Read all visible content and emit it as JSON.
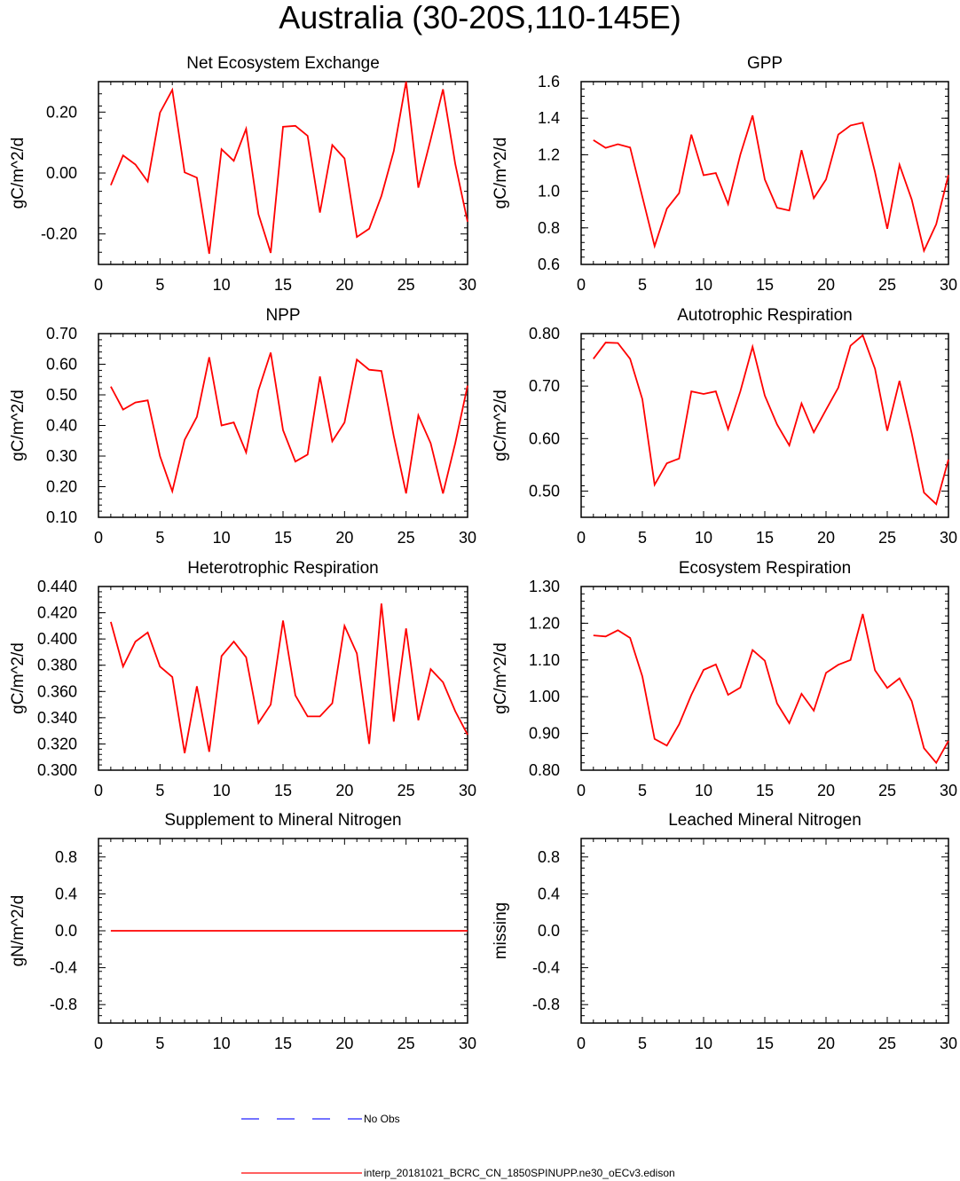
{
  "figure": {
    "title": "Australia (30-20S,110-145E)",
    "legend": [
      {
        "label": "No Obs",
        "color": "#2020ff",
        "style": "dashed"
      },
      {
        "label": "interp_20181021_BCRC_CN_1850SPINUPP.ne30_oECv3.edison",
        "color": "#ff0000",
        "style": "solid"
      }
    ]
  },
  "chart_data": [
    {
      "type": "line",
      "title": "Net Ecosystem Exchange",
      "ylabel": "gC/m^2/d",
      "xlabel": "",
      "xlim": [
        0,
        30
      ],
      "ylim": [
        -0.3,
        0.3
      ],
      "xticks": [
        0,
        5,
        10,
        15,
        20,
        25,
        30
      ],
      "yticks": [
        -0.2,
        0.0,
        0.2
      ],
      "ytick_labels": [
        "-0.20",
        "0.00",
        "0.20"
      ],
      "grid": false,
      "series": [
        {
          "name": "interp_20181021_BCRC_CN_1850SPINUPP.ne30_oECv3.edison",
          "color": "#ff0000",
          "x": [
            1,
            2,
            3,
            4,
            5,
            6,
            7,
            8,
            9,
            10,
            11,
            12,
            13,
            14,
            15,
            16,
            17,
            18,
            19,
            20,
            21,
            22,
            23,
            24,
            25,
            26,
            27,
            28,
            29,
            30
          ],
          "values": [
            -0.04,
            0.058,
            0.028,
            -0.028,
            0.198,
            0.273,
            0.002,
            -0.015,
            -0.265,
            0.078,
            0.04,
            0.145,
            -0.135,
            -0.262,
            0.152,
            0.155,
            0.122,
            -0.13,
            0.092,
            0.048,
            -0.21,
            -0.183,
            -0.075,
            0.072,
            0.3,
            -0.048,
            0.11,
            0.275,
            0.03,
            -0.16
          ]
        }
      ]
    },
    {
      "type": "line",
      "title": "GPP",
      "ylabel": "gC/m^2/d",
      "xlabel": "",
      "xlim": [
        0,
        30
      ],
      "ylim": [
        0.6,
        1.6
      ],
      "xticks": [
        0,
        5,
        10,
        15,
        20,
        25,
        30
      ],
      "yticks": [
        0.6,
        0.8,
        1.0,
        1.2,
        1.4,
        1.6
      ],
      "ytick_labels": [
        "0.6",
        "0.8",
        "1.0",
        "1.2",
        "1.4",
        "1.6"
      ],
      "grid": false,
      "series": [
        {
          "name": "interp_20181021_BCRC_CN_1850SPINUPP.ne30_oECv3.edison",
          "color": "#ff0000",
          "x": [
            1,
            2,
            3,
            4,
            5,
            6,
            7,
            8,
            9,
            10,
            11,
            12,
            13,
            14,
            15,
            16,
            17,
            18,
            19,
            20,
            21,
            22,
            23,
            24,
            25,
            26,
            27,
            28,
            29,
            30
          ],
          "values": [
            1.28,
            1.238,
            1.258,
            1.24,
            0.97,
            0.7,
            0.905,
            0.99,
            1.31,
            1.088,
            1.1,
            0.93,
            1.2,
            1.415,
            1.065,
            0.91,
            0.895,
            1.225,
            0.962,
            1.065,
            1.31,
            1.36,
            1.375,
            1.105,
            0.795,
            1.145,
            0.955,
            0.675,
            0.82,
            1.09
          ]
        }
      ]
    },
    {
      "type": "line",
      "title": "NPP",
      "ylabel": "gC/m^2/d",
      "xlabel": "",
      "xlim": [
        0,
        30
      ],
      "ylim": [
        0.1,
        0.7
      ],
      "xticks": [
        0,
        5,
        10,
        15,
        20,
        25,
        30
      ],
      "yticks": [
        0.1,
        0.2,
        0.3,
        0.4,
        0.5,
        0.6,
        0.7
      ],
      "ytick_labels": [
        "0.10",
        "0.20",
        "0.30",
        "0.40",
        "0.50",
        "0.60",
        "0.70"
      ],
      "grid": false,
      "series": [
        {
          "name": "interp_20181021_BCRC_CN_1850SPINUPP.ne30_oECv3.edison",
          "color": "#ff0000",
          "x": [
            1,
            2,
            3,
            4,
            5,
            6,
            7,
            8,
            9,
            10,
            11,
            12,
            13,
            14,
            15,
            16,
            17,
            18,
            19,
            20,
            21,
            22,
            23,
            24,
            25,
            26,
            27,
            28,
            29,
            30
          ],
          "values": [
            0.527,
            0.452,
            0.475,
            0.482,
            0.3,
            0.185,
            0.353,
            0.428,
            0.623,
            0.4,
            0.41,
            0.312,
            0.515,
            0.638,
            0.385,
            0.282,
            0.305,
            0.56,
            0.348,
            0.41,
            0.615,
            0.582,
            0.578,
            0.365,
            0.178,
            0.433,
            0.342,
            0.178,
            0.342,
            0.53
          ]
        }
      ]
    },
    {
      "type": "line",
      "title": "Autotrophic Respiration",
      "ylabel": "gC/m^2/d",
      "xlabel": "",
      "xlim": [
        0,
        30
      ],
      "ylim": [
        0.45,
        0.8
      ],
      "xticks": [
        0,
        5,
        10,
        15,
        20,
        25,
        30
      ],
      "yticks": [
        0.5,
        0.6,
        0.7,
        0.8
      ],
      "ytick_labels": [
        "0.50",
        "0.60",
        "0.70",
        "0.80"
      ],
      "grid": false,
      "series": [
        {
          "name": "interp_20181021_BCRC_CN_1850SPINUPP.ne30_oECv3.edison",
          "color": "#ff0000",
          "x": [
            1,
            2,
            3,
            4,
            5,
            6,
            7,
            8,
            9,
            10,
            11,
            12,
            13,
            14,
            15,
            16,
            17,
            18,
            19,
            20,
            21,
            22,
            23,
            24,
            25,
            26,
            27,
            28,
            29,
            30
          ],
          "values": [
            0.752,
            0.783,
            0.782,
            0.752,
            0.675,
            0.512,
            0.553,
            0.562,
            0.69,
            0.685,
            0.69,
            0.618,
            0.69,
            0.775,
            0.682,
            0.627,
            0.587,
            0.667,
            0.612,
            0.655,
            0.697,
            0.777,
            0.797,
            0.733,
            0.615,
            0.71,
            0.61,
            0.497,
            0.475,
            0.56
          ]
        }
      ]
    },
    {
      "type": "line",
      "title": "Heterotrophic Respiration",
      "ylabel": "gC/m^2/d",
      "xlabel": "",
      "xlim": [
        0,
        30
      ],
      "ylim": [
        0.3,
        0.44
      ],
      "xticks": [
        0,
        5,
        10,
        15,
        20,
        25,
        30
      ],
      "yticks": [
        0.3,
        0.32,
        0.34,
        0.36,
        0.38,
        0.4,
        0.42,
        0.44
      ],
      "ytick_labels": [
        "0.300",
        "0.320",
        "0.340",
        "0.360",
        "0.380",
        "0.400",
        "0.420",
        "0.440"
      ],
      "grid": false,
      "series": [
        {
          "name": "interp_20181021_BCRC_CN_1850SPINUPP.ne30_oECv3.edison",
          "color": "#ff0000",
          "x": [
            1,
            2,
            3,
            4,
            5,
            6,
            7,
            8,
            9,
            10,
            11,
            12,
            13,
            14,
            15,
            16,
            17,
            18,
            19,
            20,
            21,
            22,
            23,
            24,
            25,
            26,
            27,
            28,
            29,
            30
          ],
          "values": [
            0.413,
            0.379,
            0.398,
            0.405,
            0.379,
            0.371,
            0.313,
            0.364,
            0.314,
            0.387,
            0.398,
            0.386,
            0.336,
            0.35,
            0.414,
            0.357,
            0.341,
            0.341,
            0.351,
            0.41,
            0.389,
            0.32,
            0.427,
            0.337,
            0.408,
            0.338,
            0.377,
            0.367,
            0.345,
            0.327
          ]
        }
      ]
    },
    {
      "type": "line",
      "title": "Ecosystem Respiration",
      "ylabel": "gC/m^2/d",
      "xlabel": "",
      "xlim": [
        0,
        30
      ],
      "ylim": [
        0.8,
        1.3
      ],
      "xticks": [
        0,
        5,
        10,
        15,
        20,
        25,
        30
      ],
      "yticks": [
        0.8,
        0.9,
        1.0,
        1.1,
        1.2,
        1.3
      ],
      "ytick_labels": [
        "0.80",
        "0.90",
        "1.00",
        "1.10",
        "1.20",
        "1.30"
      ],
      "grid": false,
      "series": [
        {
          "name": "interp_20181021_BCRC_CN_1850SPINUPP.ne30_oECv3.edison",
          "color": "#ff0000",
          "x": [
            1,
            2,
            3,
            4,
            5,
            6,
            7,
            8,
            9,
            10,
            11,
            12,
            13,
            14,
            15,
            16,
            17,
            18,
            19,
            20,
            21,
            22,
            23,
            24,
            25,
            26,
            27,
            28,
            29,
            30
          ],
          "values": [
            1.167,
            1.164,
            1.181,
            1.16,
            1.055,
            0.885,
            0.867,
            0.925,
            1.005,
            1.073,
            1.088,
            1.005,
            1.025,
            1.127,
            1.098,
            0.982,
            0.928,
            1.008,
            0.962,
            1.065,
            1.087,
            1.1,
            1.225,
            1.072,
            1.024,
            1.05,
            0.988,
            0.86,
            0.82,
            0.88
          ]
        }
      ]
    },
    {
      "type": "line",
      "title": "Supplement to Mineral Nitrogen",
      "ylabel": "gN/m^2/d",
      "xlabel": "",
      "xlim": [
        0,
        30
      ],
      "ylim": [
        -1,
        1
      ],
      "xticks": [
        0,
        5,
        10,
        15,
        20,
        25,
        30
      ],
      "yticks": [
        -0.8,
        -0.4,
        0.0,
        0.4,
        0.8
      ],
      "ytick_labels": [
        "-0.8",
        "-0.4",
        "0.0",
        "0.4",
        "0.8"
      ],
      "grid": false,
      "series": [
        {
          "name": "interp_20181021_BCRC_CN_1850SPINUPP.ne30_oECv3.edison",
          "color": "#ff0000",
          "x": [
            1,
            30
          ],
          "values": [
            0,
            0
          ]
        }
      ]
    },
    {
      "type": "line",
      "title": "Leached Mineral Nitrogen",
      "ylabel": "missing",
      "xlabel": "",
      "xlim": [
        0,
        30
      ],
      "ylim": [
        -1,
        1
      ],
      "xticks": [
        0,
        5,
        10,
        15,
        20,
        25,
        30
      ],
      "yticks": [
        -0.8,
        -0.4,
        0.0,
        0.4,
        0.8
      ],
      "ytick_labels": [
        "-0.8",
        "-0.4",
        "0.0",
        "0.4",
        "0.8"
      ],
      "grid": false,
      "series": []
    }
  ]
}
